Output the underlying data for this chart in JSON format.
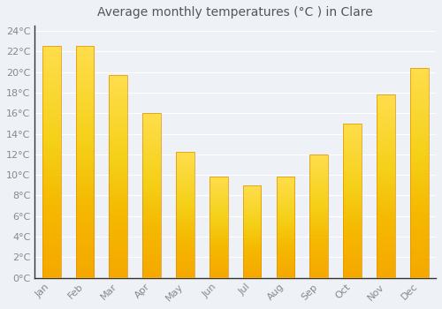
{
  "title": "Average monthly temperatures (°C ) in Clare",
  "months": [
    "Jan",
    "Feb",
    "Mar",
    "Apr",
    "May",
    "Jun",
    "Jul",
    "Aug",
    "Sep",
    "Oct",
    "Nov",
    "Dec"
  ],
  "values": [
    22.5,
    22.5,
    19.7,
    16.0,
    12.2,
    9.8,
    9.0,
    9.8,
    12.0,
    15.0,
    17.8,
    20.4
  ],
  "bar_color_bottom": "#F5A800",
  "bar_color_top": "#FFD966",
  "bar_color_center": "#FFCC44",
  "background_color": "#EEF2F7",
  "plot_bg_color": "#EEF2F7",
  "grid_color": "#FFFFFF",
  "ytick_labels": [
    "0°C",
    "2°C",
    "4°C",
    "6°C",
    "8°C",
    "10°C",
    "12°C",
    "14°C",
    "16°C",
    "18°C",
    "20°C",
    "22°C",
    "24°C"
  ],
  "ytick_values": [
    0,
    2,
    4,
    6,
    8,
    10,
    12,
    14,
    16,
    18,
    20,
    22,
    24
  ],
  "ylim": [
    0,
    24.5
  ],
  "title_fontsize": 10,
  "tick_fontsize": 8,
  "tick_color": "#888888",
  "title_color": "#555555",
  "spine_color": "#333333",
  "bar_width": 0.55
}
